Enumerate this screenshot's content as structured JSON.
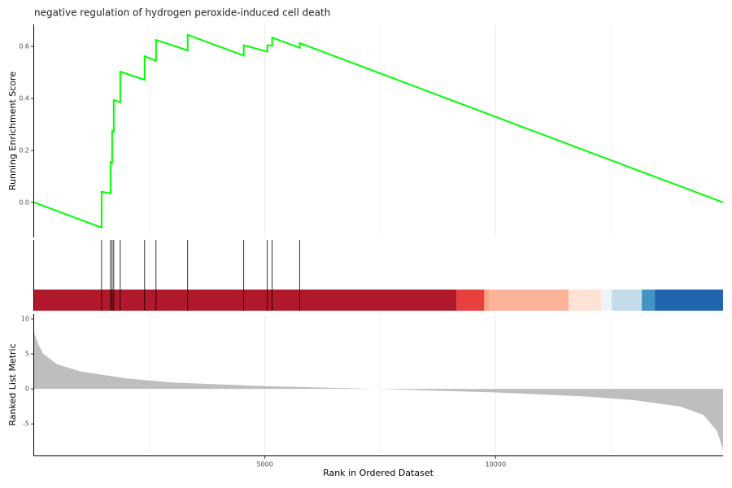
{
  "chart_data": [
    {
      "type": "line",
      "title": "negative regulation of hydrogen peroxide-induced cell death",
      "ylabel": "Running Enrichment Score",
      "color": "#00ff00",
      "xlim": [
        0,
        14930
      ],
      "ylim": [
        -0.135,
        0.685
      ],
      "yticks": [
        {
          "value": 0,
          "label": "0.0"
        },
        {
          "value": 0.2,
          "label": "0.2"
        },
        {
          "value": 0.4,
          "label": "0.4"
        },
        {
          "value": 0.6,
          "label": "0.6"
        }
      ],
      "x": [
        0,
        1461,
        1461,
        1655,
        1655,
        1690,
        1690,
        1725,
        1725,
        1866,
        1866,
        2394,
        2394,
        2641,
        2641,
        3327,
        3327,
        4542,
        4542,
        5053,
        5053,
        5158,
        5158,
        5757,
        5757,
        14930
      ],
      "values": [
        0,
        -0.097,
        0.041,
        0.035,
        0.155,
        0.152,
        0.275,
        0.272,
        0.394,
        0.385,
        0.503,
        0.472,
        0.5625,
        0.545,
        0.625,
        0.585,
        0.645,
        0.565,
        0.605,
        0.58,
        0.605,
        0.603,
        0.634,
        0.595,
        0.613,
        0
      ]
    },
    {
      "type": "rug",
      "xlim": [
        0,
        14930
      ],
      "hits": [
        1461,
        1655,
        1690,
        1725,
        1866,
        2394,
        2641,
        3327,
        4542,
        5053,
        5158,
        5757
      ],
      "bands": [
        {
          "start": 0,
          "end": 9155,
          "color": "#b2182b"
        },
        {
          "start": 9155,
          "end": 9754,
          "color": "#e8403f"
        },
        {
          "start": 9754,
          "end": 9859,
          "color": "#f4a582"
        },
        {
          "start": 9859,
          "end": 11585,
          "color": "#fdb39a"
        },
        {
          "start": 11585,
          "end": 12289,
          "color": "#fde2d6"
        },
        {
          "start": 12289,
          "end": 12518,
          "color": "#eef3f8"
        },
        {
          "start": 12518,
          "end": 13169,
          "color": "#c3dbea"
        },
        {
          "start": 13169,
          "end": 13451,
          "color": "#4393c3"
        },
        {
          "start": 13451,
          "end": 14930,
          "color": "#2166ac"
        }
      ]
    },
    {
      "type": "area",
      "ylabel": "Ranked List Metric",
      "xlabel": "Rank in Ordered Dataset",
      "color": "#bebebe",
      "xlim": [
        0,
        14930
      ],
      "ylim": [
        -9.5,
        10.7
      ],
      "xticks": [
        5000,
        10000
      ],
      "xminor": [
        2500,
        7500,
        12500
      ],
      "yticks": [
        -5,
        0,
        5,
        10
      ],
      "x": [
        0,
        100,
        200,
        500,
        1000,
        2000,
        3000,
        5000,
        7400,
        10000,
        12000,
        13000,
        14000,
        14500,
        14800,
        14930
      ],
      "values": [
        8.0,
        6.2,
        5.0,
        3.5,
        2.5,
        1.5,
        0.9,
        0.4,
        0,
        -0.5,
        -1.1,
        -1.6,
        -2.5,
        -3.7,
        -6.0,
        -8.7
      ]
    }
  ]
}
